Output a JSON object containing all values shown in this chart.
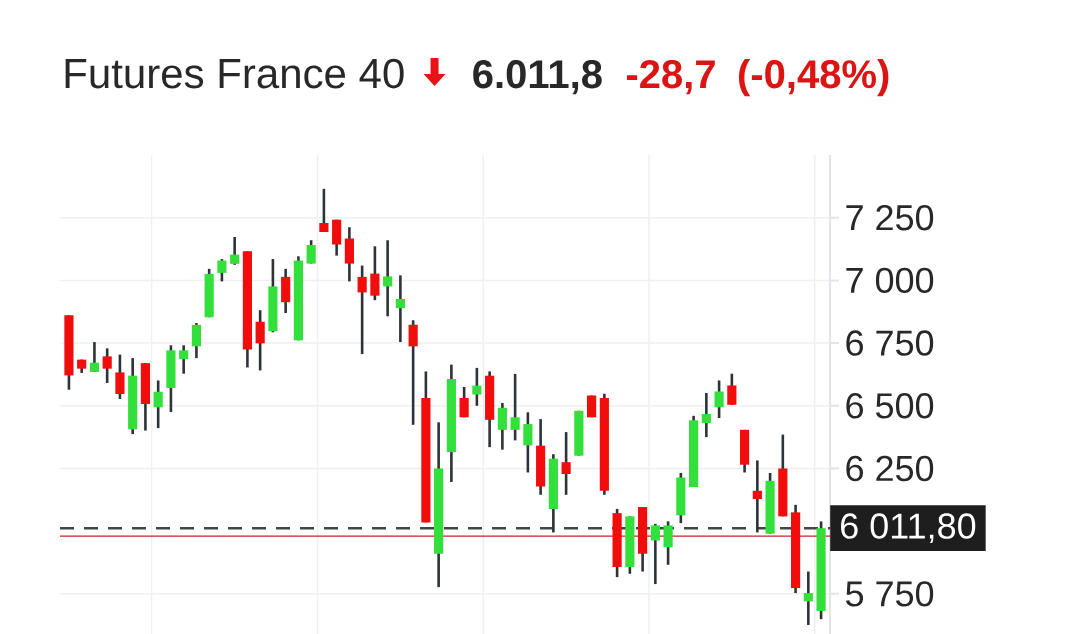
{
  "chart_data": {
    "type": "candlestick",
    "title": "Futures France 40",
    "annotations": [
      "6.011,8",
      "-28,7",
      "(-0,48%)"
    ],
    "categories": [
      null,
      null,
      null,
      null,
      null,
      null,
      null,
      null,
      null,
      null,
      null,
      null,
      null,
      null,
      null,
      null,
      null,
      null,
      null,
      null,
      null,
      null,
      null,
      null,
      null,
      null,
      null,
      null,
      null,
      null,
      null,
      null,
      null,
      null,
      null,
      null,
      null,
      null,
      null,
      null,
      null,
      null,
      null,
      null,
      null,
      null,
      null,
      null,
      null,
      null,
      null,
      null,
      null,
      null,
      null,
      null,
      null,
      null,
      null,
      null
    ],
    "ohlc": [
      [
        6861,
        6861,
        6564,
        6621
      ],
      [
        6684,
        6684,
        6631,
        6648
      ],
      [
        6635,
        6754,
        6635,
        6672
      ],
      [
        6697,
        6729,
        6591,
        6648
      ],
      [
        6633,
        6704,
        6527,
        6547
      ],
      [
        6406,
        6690,
        6387,
        6620
      ],
      [
        6670,
        6670,
        6401,
        6507
      ],
      [
        6494,
        6601,
        6411,
        6556
      ],
      [
        6571,
        6741,
        6475,
        6721
      ],
      [
        6686,
        6741,
        6628,
        6721
      ],
      [
        6737,
        6830,
        6690,
        6823
      ],
      [
        6853,
        7046,
        6853,
        7026
      ],
      [
        7030,
        7085,
        6996,
        7079
      ],
      [
        7066,
        7173,
        7062,
        7103
      ],
      [
        7116,
        7116,
        6653,
        6724
      ],
      [
        6835,
        6881,
        6641,
        6749
      ],
      [
        6797,
        7085,
        6793,
        6976
      ],
      [
        7014,
        7046,
        6870,
        6913
      ],
      [
        6761,
        7096,
        6761,
        7079
      ],
      [
        7067,
        7160,
        7067,
        7141
      ],
      [
        7229,
        7365,
        7193,
        7193
      ],
      [
        7242,
        7242,
        7099,
        7143
      ],
      [
        7167,
        7212,
        6996,
        7067
      ],
      [
        7014,
        7059,
        6706,
        6952
      ],
      [
        7027,
        7136,
        6921,
        6939
      ],
      [
        6976,
        7160,
        6857,
        7016
      ],
      [
        6889,
        7020,
        6754,
        6926
      ],
      [
        6823,
        6841,
        6424,
        6737
      ],
      [
        6531,
        6637,
        6035,
        6035
      ],
      [
        5910,
        6434,
        5777,
        6250
      ],
      [
        6315,
        6664,
        6196,
        6607
      ],
      [
        6531,
        6575,
        6454,
        6454
      ],
      [
        6545,
        6651,
        6500,
        6580
      ],
      [
        6620,
        6637,
        6335,
        6444
      ],
      [
        6404,
        6511,
        6325,
        6492
      ],
      [
        6404,
        6627,
        6362,
        6454
      ],
      [
        6342,
        6474,
        6234,
        6427
      ],
      [
        6341,
        6447,
        6145,
        6178
      ],
      [
        6088,
        6307,
        5995,
        6289
      ],
      [
        6275,
        6395,
        6145,
        6228
      ],
      [
        6301,
        6480,
        6301,
        6480
      ],
      [
        6541,
        6541,
        6454,
        6454
      ],
      [
        6531,
        6548,
        6145,
        6161
      ],
      [
        6072,
        6089,
        5817,
        5857
      ],
      [
        5857,
        6059,
        5830,
        6059
      ],
      [
        6096,
        6096,
        5839,
        5910
      ],
      [
        5963,
        6029,
        5789,
        6023
      ],
      [
        5936,
        6039,
        5866,
        6023
      ],
      [
        6063,
        6232,
        6032,
        6214
      ],
      [
        6176,
        6460,
        6176,
        6442
      ],
      [
        6431,
        6551,
        6375,
        6467
      ],
      [
        6494,
        6601,
        6451,
        6557
      ],
      [
        6581,
        6628,
        6504,
        6504
      ],
      [
        6404,
        6404,
        6234,
        6265
      ],
      [
        6161,
        6282,
        5995,
        6128
      ],
      [
        5990,
        6232,
        5990,
        6201
      ],
      [
        6250,
        6385,
        6059,
        6059
      ],
      [
        6075,
        6105,
        5753,
        5773
      ],
      [
        5720,
        5839,
        5626,
        5753
      ],
      [
        5682,
        6039,
        5649,
        6012
      ]
    ],
    "colors": [
      "#f20d0d",
      "#f20d0d",
      "#33e03b",
      "#f20d0d",
      "#f20d0d",
      "#33e03b",
      "#f20d0d",
      "#33e03b",
      "#33e03b",
      "#33e03b",
      "#33e03b",
      "#33e03b",
      "#33e03b",
      "#33e03b",
      "#f20d0d",
      "#f20d0d",
      "#33e03b",
      "#f20d0d",
      "#33e03b",
      "#33e03b",
      "#f20d0d",
      "#f20d0d",
      "#f20d0d",
      "#f20d0d",
      "#f20d0d",
      "#33e03b",
      "#33e03b",
      "#f20d0d",
      "#f20d0d",
      "#33e03b",
      "#33e03b",
      "#f20d0d",
      "#33e03b",
      "#f20d0d",
      "#33e03b",
      "#33e03b",
      "#33e03b",
      "#f20d0d",
      "#33e03b",
      "#f20d0d",
      "#33e03b",
      "#f20d0d",
      "#f20d0d",
      "#f20d0d",
      "#33e03b",
      "#f20d0d",
      "#33e03b",
      "#33e03b",
      "#33e03b",
      "#33e03b",
      "#33e03b",
      "#33e03b",
      "#f20d0d",
      "#f20d0d",
      "#f20d0d",
      "#33e03b",
      "#f20d0d",
      "#f20d0d",
      "#33e03b",
      "#33e03b"
    ],
    "ylim": [
      5590,
      7500
    ],
    "yticks": [
      {
        "value": 5750,
        "label": "5 750"
      },
      {
        "value": 6250,
        "label": "6 250"
      },
      {
        "value": 6500,
        "label": "6 500"
      },
      {
        "value": 6750,
        "label": "6 750"
      },
      {
        "value": 7000,
        "label": "7 000"
      },
      {
        "value": 7250,
        "label": "7 250"
      }
    ],
    "grid": "y",
    "tick_labels": "y",
    "ref_lines": [
      {
        "axis": "y",
        "value": 6011.8,
        "label": "6 011,80",
        "color": "#444444",
        "line_style": "dashed"
      },
      {
        "axis": "y",
        "value": 5980,
        "label": null,
        "color": "#cc2020",
        "line_style": "solid"
      }
    ]
  }
}
